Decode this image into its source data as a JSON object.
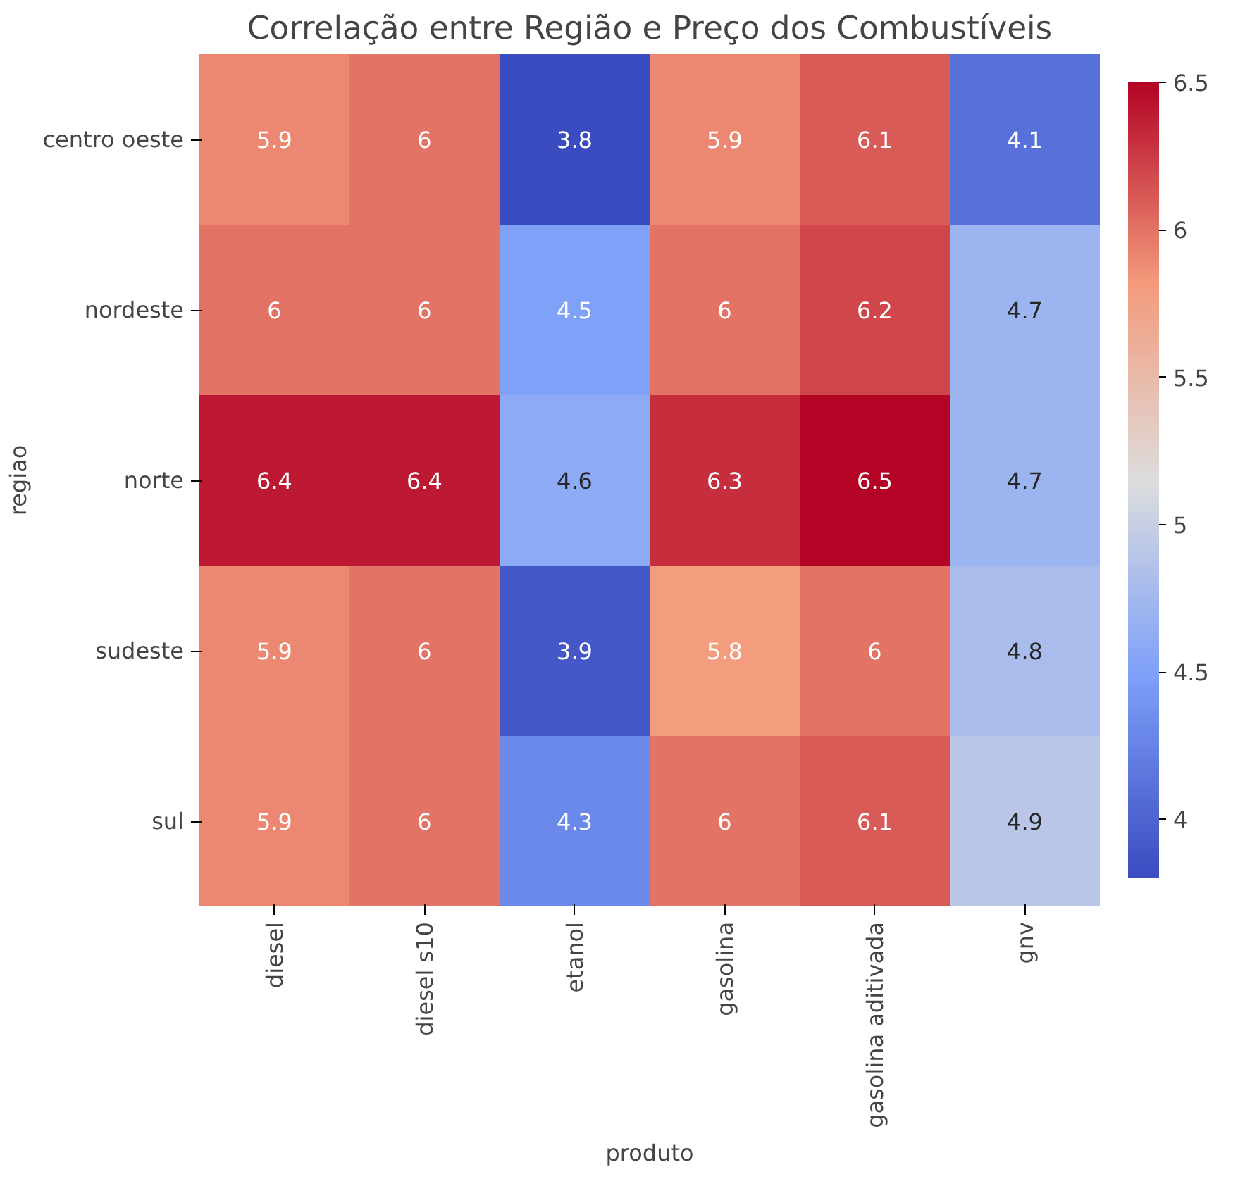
{
  "chart_data": {
    "type": "heatmap",
    "title": "Correlação entre Região e Preço dos Combustíveis",
    "xlabel": "produto",
    "ylabel": "regiao",
    "categories": [
      "diesel",
      "diesel s10",
      "etanol",
      "gasolina",
      "gasolina aditivada",
      "gnv"
    ],
    "y_categories": [
      "centro oeste",
      "nordeste",
      "norte",
      "sudeste",
      "sul"
    ],
    "cells": [
      [
        5.9,
        6,
        3.8,
        5.9,
        6.1,
        4.1
      ],
      [
        6,
        6,
        4.5,
        6,
        6.2,
        4.7
      ],
      [
        6.4,
        6.4,
        4.6,
        6.3,
        6.5,
        4.7
      ],
      [
        5.9,
        6,
        3.9,
        5.8,
        6,
        4.8
      ],
      [
        5.9,
        6,
        4.3,
        6,
        6.1,
        4.9
      ]
    ],
    "data_labels": true,
    "clim": [
      3.8,
      6.5
    ],
    "cticks": [
      4.0,
      4.5,
      5.0,
      5.5,
      6.0,
      6.5
    ]
  }
}
